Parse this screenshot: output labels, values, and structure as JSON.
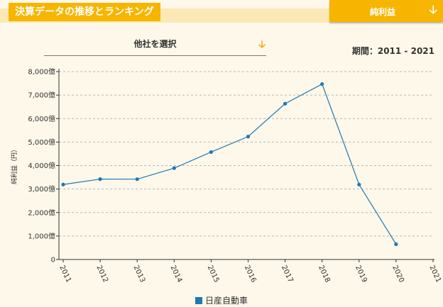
{
  "header": {
    "title": "決算データの推移とランキング",
    "metric_tab": {
      "label": "純利益",
      "icon": "arrow-down-icon"
    }
  },
  "selector": {
    "label": "他社を選択",
    "icon": "arrow-down-icon"
  },
  "period": "期間：2011 - 2021",
  "colors": {
    "accent": "#f7b500",
    "series": "#1f78b4",
    "background": "#fdf8ea"
  },
  "chart_data": {
    "type": "line",
    "title": "",
    "xlabel": "",
    "ylabel": "純利益（円）",
    "x": [
      "2011",
      "2012",
      "2013",
      "2014",
      "2015",
      "2016",
      "2017",
      "2018",
      "2019",
      "2020",
      "2021"
    ],
    "ylim": [
      0,
      8000
    ],
    "y_ticks": [
      0,
      1000,
      2000,
      3000,
      4000,
      5000,
      6000,
      7000,
      8000
    ],
    "y_tick_labels": [
      "0",
      "1,000億",
      "2,000億",
      "3,000億",
      "4,000億",
      "5,000億",
      "6,000億",
      "7,000億",
      "8,000億"
    ],
    "grid": true,
    "legend_position": "bottom",
    "series": [
      {
        "name": "日産自動車",
        "values": [
          3192,
          3423,
          3421,
          3890,
          4576,
          5234,
          6634,
          7469,
          3191,
          650,
          null
        ]
      }
    ]
  }
}
